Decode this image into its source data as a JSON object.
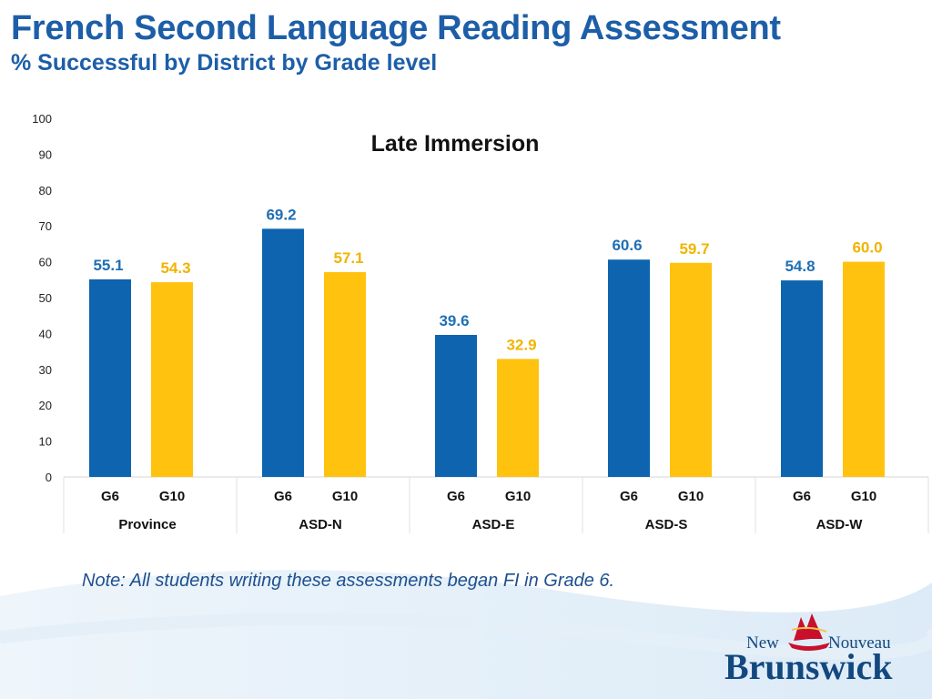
{
  "header": {
    "title": "French Second Language Reading Assessment",
    "subtitle": "% Successful by District by Grade level"
  },
  "note": "Note: All students writing these assessments began FI in Grade 6.",
  "logo": {
    "text_new": "New",
    "text_nouveau": "Nouveau",
    "text_main": "Brunswick",
    "icon": "ship-icon"
  },
  "chart_data": {
    "type": "bar",
    "title": "Late Immersion",
    "ylim": [
      0,
      100
    ],
    "yticks": [
      0,
      10,
      20,
      30,
      40,
      50,
      60,
      70,
      80,
      90,
      100
    ],
    "groups": [
      "Province",
      "ASD-N",
      "ASD-E",
      "ASD-S",
      "ASD-W"
    ],
    "sub_categories": [
      "G6",
      "G10"
    ],
    "series": [
      {
        "key": "G6",
        "color": "#0e64ae",
        "label_color": "#1f6fb5",
        "values": [
          55.1,
          69.2,
          39.6,
          60.6,
          54.8
        ]
      },
      {
        "key": "G10",
        "color": "#ffc20e",
        "label_color": "#f1b400",
        "values": [
          54.3,
          57.1,
          32.9,
          59.7,
          60.0
        ]
      }
    ],
    "value_labels": [
      [
        "55.1",
        "69.2",
        "39.6",
        "60.6",
        "54.8"
      ],
      [
        "54.3",
        "57.1",
        "32.9",
        "59.7",
        "60.0"
      ]
    ],
    "grid": false,
    "legend": "none"
  }
}
